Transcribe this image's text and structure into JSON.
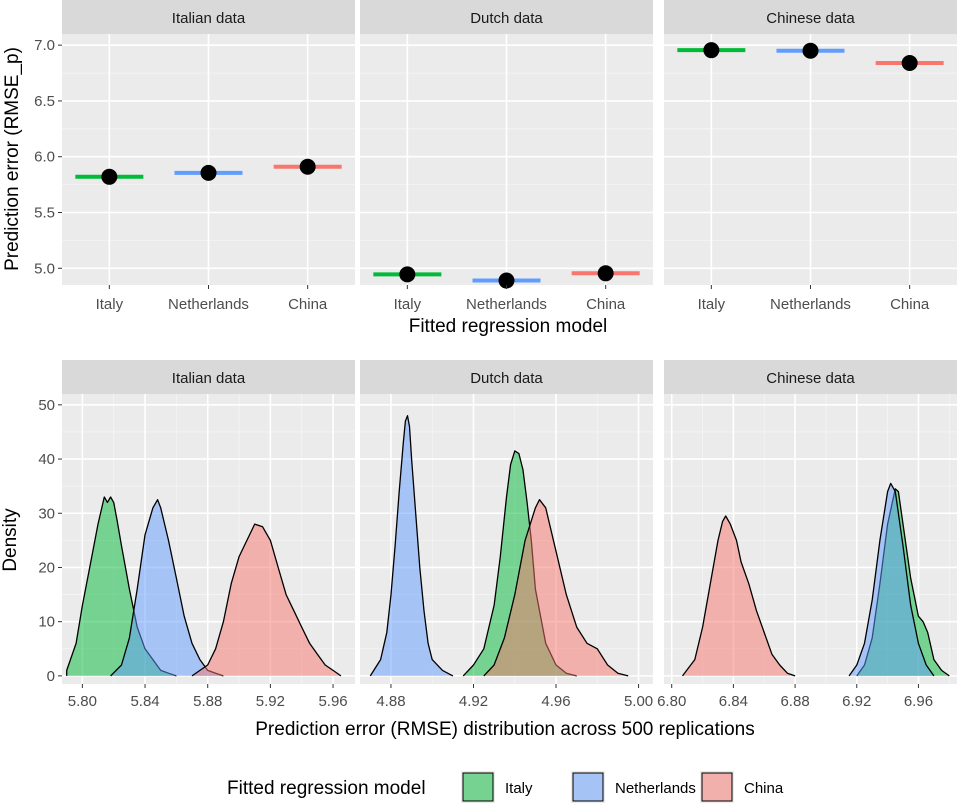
{
  "chart_data": [
    {
      "type": "scatter",
      "panels": [
        {
          "title": "Italian data",
          "points": [
            {
              "model": "Italy",
              "mean": 5.82
            },
            {
              "model": "Netherlands",
              "mean": 5.855
            },
            {
              "model": "China",
              "mean": 5.91
            }
          ]
        },
        {
          "title": "Dutch data",
          "points": [
            {
              "model": "Italy",
              "mean": 4.945
            },
            {
              "model": "Netherlands",
              "mean": 4.89
            },
            {
              "model": "China",
              "mean": 4.955
            }
          ]
        },
        {
          "title": "Chinese data",
          "points": [
            {
              "model": "Italy",
              "mean": 6.955
            },
            {
              "model": "Netherlands",
              "mean": 6.95
            },
            {
              "model": "China",
              "mean": 6.84
            }
          ]
        }
      ],
      "categories": [
        "Italy",
        "Netherlands",
        "China"
      ],
      "xlabel": "Fitted regression model",
      "ylabel": "Prediction error (RMSE_p)",
      "ylim": [
        4.85,
        7.1
      ],
      "yticks": [
        5.0,
        5.5,
        6.0,
        6.5,
        7.0
      ],
      "ytick_labels": [
        "5.0",
        "5.5",
        "6.0",
        "6.5",
        "7.0"
      ]
    },
    {
      "type": "area",
      "panels": [
        {
          "title": "Italian data",
          "xlim": [
            5.787,
            5.974
          ],
          "xticks": [
            5.8,
            5.84,
            5.88,
            5.92,
            5.96
          ],
          "xtick_labels": [
            "5.80",
            "5.84",
            "5.88",
            "5.92",
            "5.96"
          ],
          "series": [
            {
              "name": "Italy",
              "x": [
                5.79,
                5.796,
                5.8,
                5.806,
                5.81,
                5.814,
                5.816,
                5.818,
                5.82,
                5.822,
                5.825,
                5.83,
                5.835,
                5.84,
                5.845,
                5.85,
                5.855,
                5.86
              ],
              "y": [
                1,
                6,
                13,
                22,
                28,
                33,
                32,
                33,
                32,
                29,
                24,
                16,
                9,
                5,
                3,
                1,
                0.5,
                0
              ]
            },
            {
              "name": "Netherlands",
              "x": [
                5.818,
                5.825,
                5.83,
                5.835,
                5.84,
                5.845,
                5.848,
                5.85,
                5.855,
                5.86,
                5.865,
                5.87,
                5.875,
                5.88,
                5.885,
                5.89
              ],
              "y": [
                0,
                2,
                7,
                16,
                26,
                31,
                32.5,
                31,
                25,
                18,
                11,
                6,
                3,
                1,
                0.5,
                0
              ]
            },
            {
              "name": "China",
              "x": [
                5.87,
                5.88,
                5.885,
                5.89,
                5.895,
                5.9,
                5.905,
                5.91,
                5.915,
                5.92,
                5.925,
                5.93,
                5.935,
                5.94,
                5.945,
                5.95,
                5.955,
                5.96,
                5.965
              ],
              "y": [
                0,
                2,
                5,
                10,
                17,
                22,
                25,
                28,
                27.5,
                25,
                20,
                15,
                12,
                9,
                6,
                4,
                2,
                1,
                0
              ]
            }
          ]
        },
        {
          "title": "Dutch data",
          "xlim": [
            4.865,
            5.007
          ],
          "xticks": [
            4.88,
            4.92,
            4.96,
            5.0
          ],
          "xtick_labels": [
            "4.88",
            "4.92",
            "4.96",
            "5.00"
          ],
          "series": [
            {
              "name": "Netherlands",
              "x": [
                4.87,
                4.875,
                4.878,
                4.88,
                4.882,
                4.884,
                4.886,
                4.887,
                4.888,
                4.889,
                4.89,
                4.892,
                4.894,
                4.896,
                4.898,
                4.9,
                4.905,
                4.91
              ],
              "y": [
                0,
                3,
                8,
                15,
                24,
                34,
                43,
                47,
                48,
                46,
                40,
                30,
                20,
                12,
                6,
                3,
                1,
                0
              ]
            },
            {
              "name": "Italy",
              "x": [
                4.915,
                4.92,
                4.925,
                4.93,
                4.933,
                4.936,
                4.938,
                4.94,
                4.942,
                4.944,
                4.946,
                4.948,
                4.95,
                4.955,
                4.96,
                4.965,
                4.97
              ],
              "y": [
                0,
                2,
                5,
                13,
                22,
                33,
                39,
                41.5,
                41,
                38,
                32,
                25,
                16,
                6,
                2,
                0.5,
                0
              ]
            },
            {
              "name": "China",
              "x": [
                4.925,
                4.93,
                4.935,
                4.94,
                4.945,
                4.95,
                4.952,
                4.955,
                4.96,
                4.965,
                4.97,
                4.975,
                4.98,
                4.985,
                4.99,
                4.995
              ],
              "y": [
                0,
                2,
                7,
                15,
                25,
                31,
                32.5,
                31,
                23,
                15,
                9,
                6,
                5,
                2,
                0.5,
                0
              ]
            }
          ]
        },
        {
          "title": "Chinese data",
          "xlim": [
            6.795,
            6.985
          ],
          "xticks": [
            6.8,
            6.84,
            6.88,
            6.92,
            6.96
          ],
          "xtick_labels": [
            "6.80",
            "6.84",
            "6.88",
            "6.92",
            "6.96"
          ],
          "series": [
            {
              "name": "China",
              "x": [
                6.807,
                6.815,
                6.82,
                6.825,
                6.83,
                6.833,
                6.835,
                6.838,
                6.842,
                6.845,
                6.85,
                6.855,
                6.86,
                6.865,
                6.87,
                6.875,
                6.88
              ],
              "y": [
                0,
                3,
                9,
                17,
                25,
                28.5,
                29.5,
                28,
                25,
                21,
                17,
                12,
                8,
                4,
                2,
                0.5,
                0
              ]
            },
            {
              "name": "Italy",
              "x": [
                6.92,
                6.925,
                6.93,
                6.935,
                6.94,
                6.945,
                6.947,
                6.95,
                6.955,
                6.96,
                6.963,
                6.966,
                6.97,
                6.975,
                6.98
              ],
              "y": [
                0,
                2,
                7,
                17,
                28,
                34.5,
                34,
                28,
                18,
                11,
                10,
                8,
                3,
                1,
                0
              ]
            },
            {
              "name": "Netherlands",
              "x": [
                6.915,
                6.92,
                6.925,
                6.93,
                6.935,
                6.94,
                6.942,
                6.945,
                6.95,
                6.955,
                6.96,
                6.965,
                6.97
              ],
              "y": [
                0,
                2,
                6,
                14,
                25,
                34,
                35.5,
                34,
                24,
                13,
                6,
                2,
                0
              ]
            }
          ]
        }
      ],
      "ylim": [
        -1.5,
        52
      ],
      "yticks": [
        0,
        10,
        20,
        30,
        40,
        50
      ],
      "ytick_labels": [
        "0",
        "10",
        "20",
        "30",
        "40",
        "50"
      ],
      "xlabel": "Prediction error (RMSE) distribution across 500 replications",
      "ylabel": "Density"
    }
  ],
  "legend": {
    "title": "Fitted regression model",
    "items": [
      {
        "label": "Italy",
        "fill": "#00BA38"
      },
      {
        "label": "Netherlands",
        "fill": "#619CFF"
      },
      {
        "label": "China",
        "fill": "#F8766D"
      }
    ]
  },
  "colors": {
    "Italy": "#00BA38",
    "Netherlands": "#619CFF",
    "China": "#F8766D"
  }
}
